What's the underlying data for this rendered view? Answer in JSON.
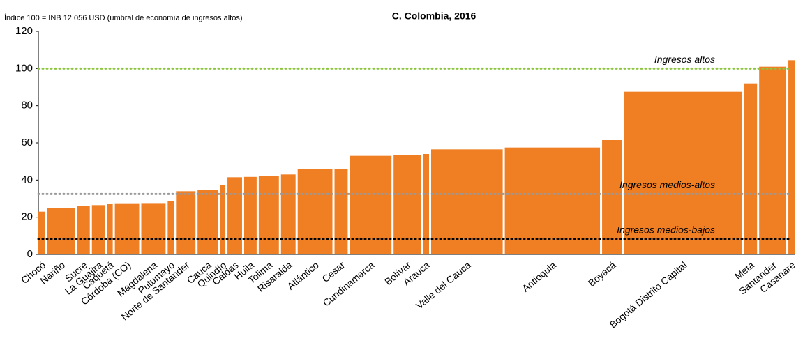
{
  "chart_data": {
    "type": "variable-width-bar",
    "title": "C. Colombia, 2016",
    "note": "Índice 100 = INB 12 056 USD (umbral de economía de ingresos altos)",
    "categories": [
      "Chocó",
      "Nariño",
      "Sucre",
      "La Guajira",
      "Caquetá",
      "Córdoba (CO)",
      "Magdalena",
      "Putumayo",
      "Norte de Santander",
      "Cauca",
      "Quindío",
      "Caldas",
      "Huila",
      "Tolima",
      "Risaralda",
      "Atlántico",
      "Cesar",
      "Cundinamarca",
      "Bolívar",
      "Arauca",
      "Valle del Cauca",
      "Antioquia",
      "Boyacá",
      "Bogotá Distrito Capital",
      "Meta",
      "Santander",
      "Casanare"
    ],
    "values": [
      23,
      25,
      26,
      26.5,
      27,
      27.5,
      27.6,
      28.5,
      34,
      34.5,
      37.5,
      41.5,
      41.7,
      42,
      43,
      45.8,
      46,
      53,
      53.3,
      54,
      56.5,
      57.5,
      61.5,
      87.5,
      92,
      101,
      104.5
    ],
    "widths": [
      10,
      40,
      18,
      19,
      8,
      35,
      35,
      9,
      28,
      29,
      8,
      21,
      18,
      29,
      21,
      50,
      19,
      60,
      39,
      9,
      103,
      137,
      29,
      169,
      19,
      39,
      9
    ],
    "color": "#f07f24",
    "reference_lines": [
      {
        "name": "Ingresos altos",
        "value": 100,
        "color": "#8cc63f"
      },
      {
        "name": "Ingresos medios-altos",
        "value": 32.5,
        "color": "#999999"
      },
      {
        "name": "Ingresos medios-bajos",
        "value": 8.3,
        "color": "#000000"
      }
    ],
    "ylim": [
      0,
      120
    ],
    "yticks": [
      0,
      20,
      40,
      60,
      80,
      100,
      120
    ]
  }
}
